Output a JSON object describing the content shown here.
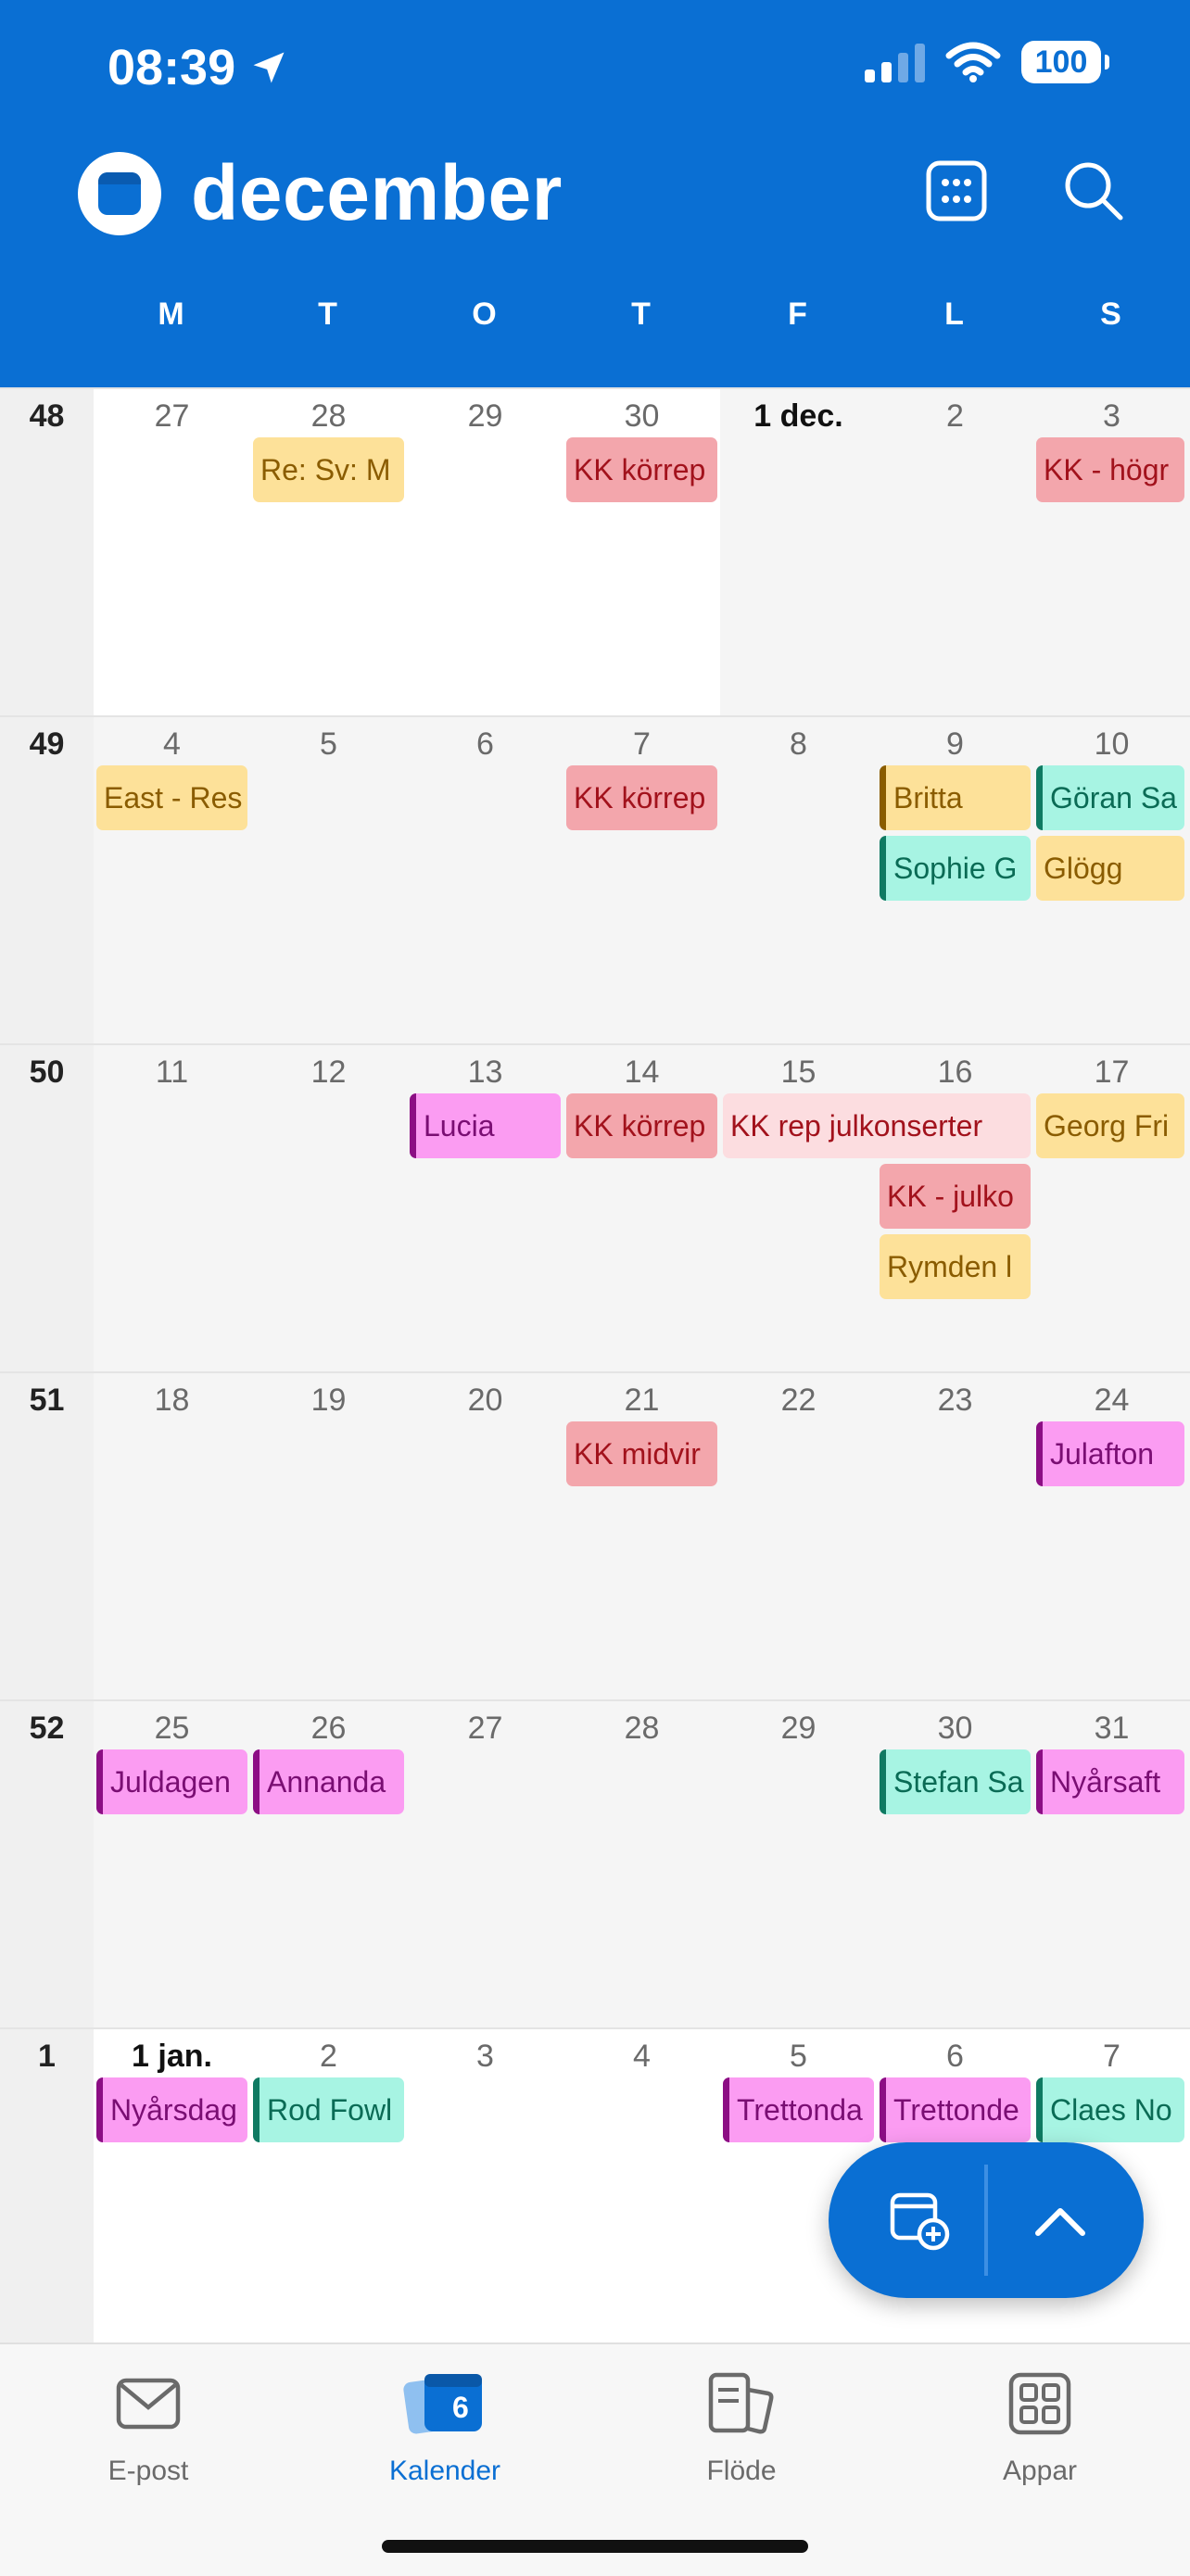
{
  "status_bar": {
    "time": "08:39",
    "battery": "100"
  },
  "header": {
    "title": "december",
    "icons": [
      "calendar-icon",
      "day-picker-icon",
      "search-icon"
    ]
  },
  "days_of_week": [
    "M",
    "T",
    "O",
    "T",
    "F",
    "L",
    "S"
  ],
  "weeks": [
    {
      "number": "48",
      "days": [
        "27",
        "28",
        "29",
        "30",
        "1 dec.",
        "2",
        "3"
      ]
    },
    {
      "number": "49",
      "days": [
        "4",
        "5",
        "6",
        "7",
        "8",
        "9",
        "10"
      ]
    },
    {
      "number": "50",
      "days": [
        "11",
        "12",
        "13",
        "14",
        "15",
        "16",
        "17"
      ]
    },
    {
      "number": "51",
      "days": [
        "18",
        "19",
        "20",
        "21",
        "22",
        "23",
        "24"
      ]
    },
    {
      "number": "52",
      "days": [
        "25",
        "26",
        "27",
        "28",
        "29",
        "30",
        "31"
      ]
    },
    {
      "number": "1",
      "days": [
        "1 jan.",
        "2",
        "3",
        "4",
        "5",
        "6",
        "7"
      ]
    }
  ],
  "events": {
    "w48": [
      "Re: Sv: M",
      "KK körrep",
      "KK - högr"
    ],
    "w49": [
      "East - Res",
      "KK körrep",
      "Britta",
      "Göran Sa",
      "Sophie G",
      "Glögg"
    ],
    "w50": [
      "Lucia",
      "KK körrep",
      "KK rep julkonserter",
      "Georg Fri",
      "KK - julko",
      "Rymden l"
    ],
    "w51": [
      "KK midvir",
      "Julafton"
    ],
    "w52": [
      "Juldagen",
      "Annanda",
      "Stefan Sa",
      "Nyårsaft"
    ],
    "w1": [
      "Nyårsdag",
      "Rod Fowl",
      "Trettonda",
      "Trettonde",
      "Claes No"
    ]
  },
  "colors": {
    "accent": "#0a6fd3",
    "red_event": "#f3a6ac",
    "yellow_event": "#fde199",
    "teal_event": "#a7f4e3",
    "pink_event": "#fb9cf2"
  },
  "tabbar": {
    "mail": "E-post",
    "calendar": "Kalender",
    "calendar_badge": "6",
    "feed": "Flöde",
    "apps": "Appar"
  }
}
